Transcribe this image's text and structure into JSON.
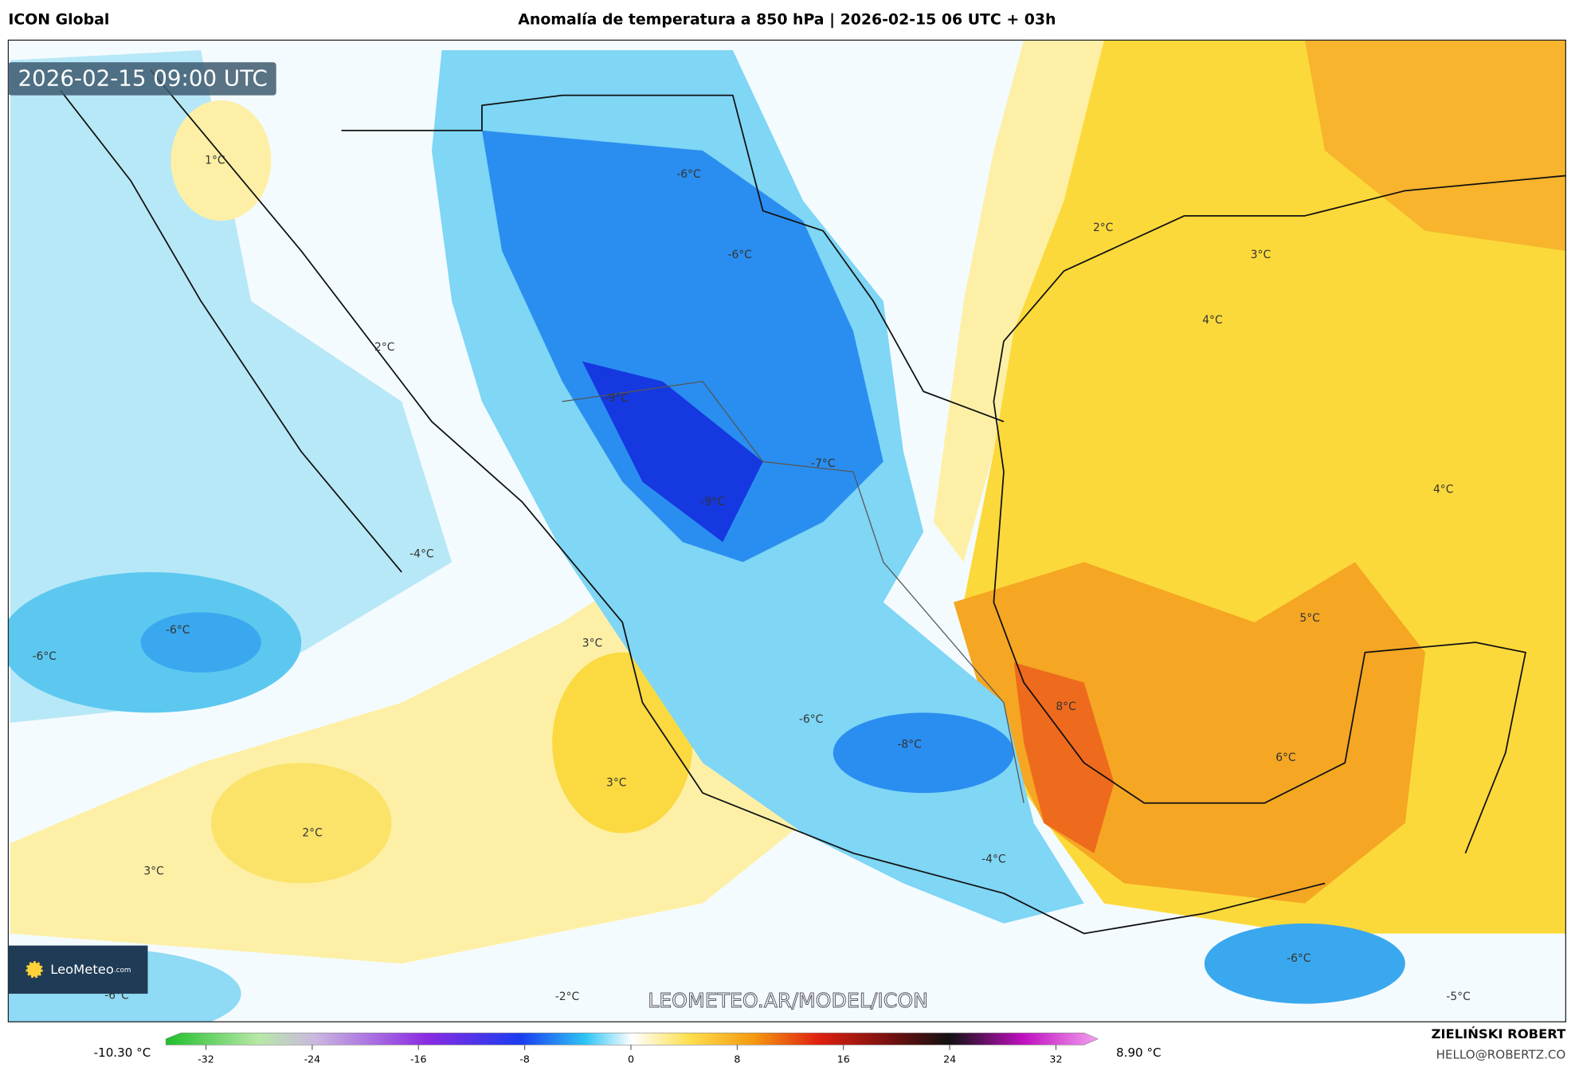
{
  "header": {
    "model": "ICON Global",
    "title": "Anomalía de temperatura a 850 hPa | 2026-02-15 06 UTC + 03h"
  },
  "map": {
    "valid_time": "2026-02-15 09:00 UTC",
    "labels": [
      "-6°C",
      "1°C",
      "-6°C",
      "2°C",
      "3°C",
      "4°C",
      "2°C",
      "-9°C",
      "-7°C",
      "-9°C",
      "4°C",
      "-4°C",
      "5°C",
      "-6°C",
      "-6°C",
      "3°C",
      "8°C",
      "-6°C",
      "-8°C",
      "6°C",
      "3°C",
      "2°C",
      "-4°C",
      "3°C",
      "-6°C",
      "-2°C",
      "-6°C",
      "-5°C"
    ],
    "watermark": "LEOMETEO.AR/MODEL/ICON",
    "logo": "LeoMeteo",
    "logo_suffix": ".com"
  },
  "colorbar": {
    "min_label": "-10.30 °C",
    "max_label": "8.90 °C",
    "ticks": [
      -32,
      -24,
      -16,
      -8,
      0,
      8,
      16,
      24,
      32
    ]
  },
  "footer": {
    "author": "ZIELIŃSKI ROBERT",
    "email": "HELLO@ROBERTZ.CO"
  }
}
